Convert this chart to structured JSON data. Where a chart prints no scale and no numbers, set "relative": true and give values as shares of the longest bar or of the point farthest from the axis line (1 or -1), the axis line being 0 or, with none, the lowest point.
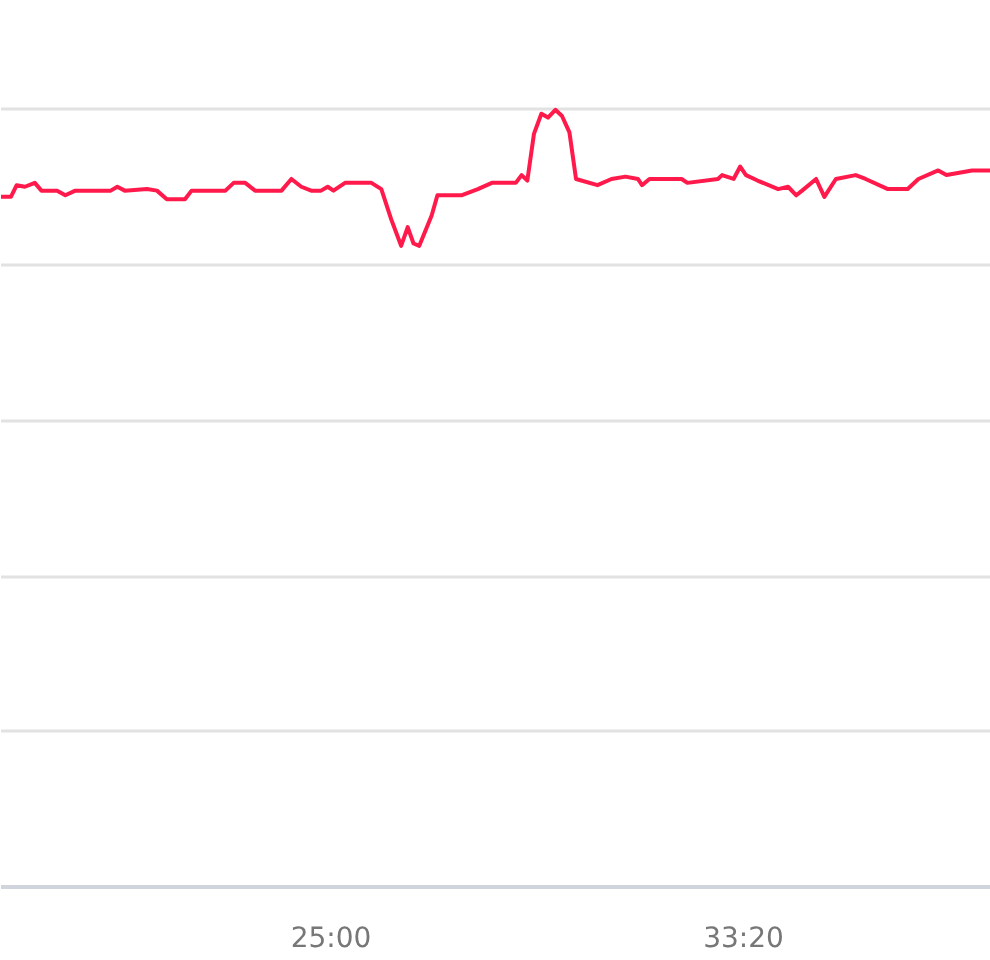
{
  "chart_data": {
    "type": "line",
    "relative": true,
    "grid": "y",
    "marker": "none",
    "line_style": "solid",
    "xlim": [
      1100,
      2300
    ],
    "xticks": [
      {
        "value": 1500,
        "label": "25:00"
      },
      {
        "value": 2000,
        "label": "33:20"
      }
    ],
    "x": [
      1100,
      1112,
      1119,
      1129,
      1141,
      1149,
      1168,
      1178,
      1190,
      1233,
      1241,
      1250,
      1277,
      1289,
      1301,
      1323,
      1331,
      1372,
      1382,
      1396,
      1408,
      1440,
      1452,
      1464,
      1476,
      1488,
      1496,
      1503,
      1517,
      1549,
      1561,
      1573,
      1585,
      1593,
      1600,
      1607,
      1622,
      1629,
      1658,
      1678,
      1695,
      1724,
      1731,
      1738,
      1746,
      1755,
      1763,
      1772,
      1780,
      1789,
      1797,
      1823,
      1840,
      1857,
      1872,
      1877,
      1886,
      1925,
      1932,
      1969,
      1974,
      1988,
      1996,
      2003,
      2017,
      2042,
      2054,
      2064,
      2071,
      2088,
      2098,
      2112,
      2136,
      2148,
      2175,
      2199,
      2212,
      2236,
      2246,
      2277,
      2300
    ],
    "series": [
      {
        "color": "#ff1a4b",
        "values": [
          0.888,
          0.888,
          0.903,
          0.901,
          0.906,
          0.896,
          0.896,
          0.89,
          0.896,
          0.896,
          0.901,
          0.896,
          0.898,
          0.896,
          0.885,
          0.885,
          0.896,
          0.896,
          0.906,
          0.906,
          0.896,
          0.896,
          0.911,
          0.901,
          0.896,
          0.896,
          0.901,
          0.896,
          0.906,
          0.906,
          0.898,
          0.859,
          0.825,
          0.849,
          0.828,
          0.825,
          0.864,
          0.89,
          0.89,
          0.898,
          0.906,
          0.906,
          0.916,
          0.909,
          0.969,
          0.995,
          0.99,
          1,
          0.992,
          0.971,
          0.911,
          0.903,
          0.911,
          0.914,
          0.911,
          0.903,
          0.911,
          0.911,
          0.906,
          0.911,
          0.916,
          0.911,
          0.927,
          0.916,
          0.909,
          0.898,
          0.901,
          0.89,
          0.896,
          0.911,
          0.888,
          0.911,
          0.916,
          0.911,
          0.898,
          0.898,
          0.911,
          0.922,
          0.916,
          0.922,
          0.922
        ]
      }
    ]
  }
}
